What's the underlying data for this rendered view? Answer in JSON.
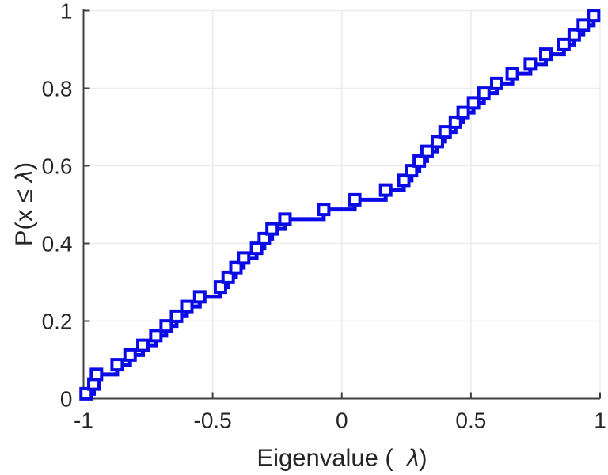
{
  "figure": {
    "background": "#ffffff",
    "axis_color": "#404040",
    "text_color": "#262626",
    "grid_color": "#ececec",
    "tick_label_fontsize": 28
  },
  "xlabel": {
    "prefix": "Eigenvalue (  ",
    "lambda": "λ",
    "suffix": ")"
  },
  "ylabel": {
    "prefix": "P(x ≤ ",
    "lambda": "λ",
    "suffix": ")"
  },
  "chart_data": {
    "type": "line",
    "subtype": "empirical-cdf-stairs",
    "title": "",
    "xlabel": "Eigenvalue (  λ)",
    "ylabel": "P(x ≤ λ)",
    "xlim": [
      -1,
      1
    ],
    "ylim": [
      0,
      1
    ],
    "xticks": [
      -1,
      -0.5,
      0,
      0.5,
      1
    ],
    "xtick_labels": [
      "-1",
      "-0.5",
      "0",
      "0.5",
      "1"
    ],
    "yticks": [
      0,
      0.2,
      0.4,
      0.6,
      0.8,
      1
    ],
    "ytick_labels": [
      "0",
      "0.2",
      "0.4",
      "0.6",
      "0.8",
      "1"
    ],
    "grid": true,
    "legend": null,
    "line_color": "#0a0ae6",
    "marker": "square-open",
    "marker_fill": "#ffffff",
    "series": [
      {
        "name": "eigenvalue-ecdf",
        "x": [
          -0.99,
          -0.96,
          -0.95,
          -0.87,
          -0.82,
          -0.77,
          -0.72,
          -0.68,
          -0.64,
          -0.6,
          -0.55,
          -0.47,
          -0.44,
          -0.41,
          -0.38,
          -0.33,
          -0.3,
          -0.27,
          -0.22,
          -0.07,
          0.05,
          0.17,
          0.24,
          0.27,
          0.3,
          0.33,
          0.37,
          0.4,
          0.44,
          0.47,
          0.51,
          0.55,
          0.6,
          0.66,
          0.73,
          0.79,
          0.86,
          0.9,
          0.935,
          0.975
        ],
        "y": [
          0.0125,
          0.0375,
          0.0625,
          0.0875,
          0.1125,
          0.1375,
          0.1625,
          0.1875,
          0.2125,
          0.2375,
          0.2625,
          0.2875,
          0.3125,
          0.3375,
          0.3625,
          0.3875,
          0.4125,
          0.4375,
          0.4625,
          0.4875,
          0.5125,
          0.5375,
          0.5625,
          0.5875,
          0.6125,
          0.6375,
          0.6625,
          0.6875,
          0.7125,
          0.7375,
          0.7625,
          0.7875,
          0.8125,
          0.8375,
          0.8625,
          0.8875,
          0.9125,
          0.9375,
          0.9625,
          0.9875
        ]
      }
    ]
  }
}
